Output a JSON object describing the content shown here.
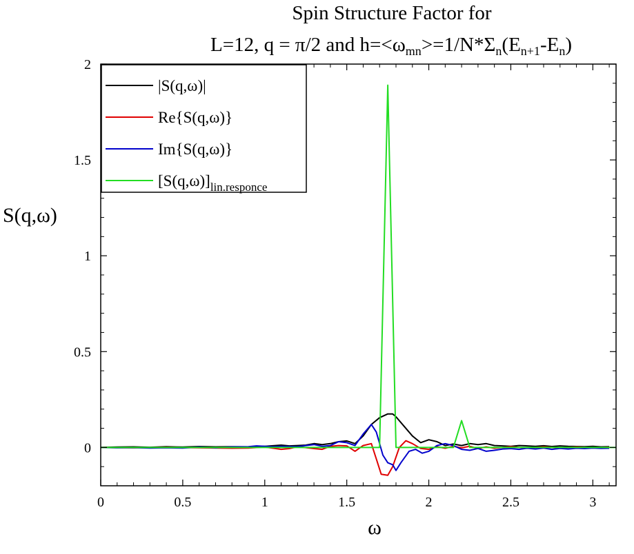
{
  "chart_data": {
    "type": "line",
    "title_line1": "Spin Structure Factor for",
    "title_line2": {
      "prefix": "L=12, q = π/2 and h=<ω",
      "sub1": "mn",
      "mid": ">=1/N*Σ",
      "sub2": "n",
      "mid2": "(E",
      "sub3": "n+1",
      "mid3": "-E",
      "sub4": "n",
      "suffix": ")"
    },
    "xlabel": "ω",
    "ylabel": "S(q,ω)",
    "xlim": [
      0,
      3.14159
    ],
    "ylim": [
      -0.2,
      2
    ],
    "xticks": [
      0,
      0.5,
      1,
      1.5,
      2,
      2.5,
      3
    ],
    "xtick_labels": [
      "0",
      "0.5",
      "1",
      "1.5",
      "2",
      "2.5",
      "3"
    ],
    "yticks": [
      0,
      0.5,
      1,
      1.5,
      2
    ],
    "ytick_labels": [
      "0",
      "0.5",
      "1",
      "1.5",
      "2"
    ],
    "legend_position": "top-left",
    "series": [
      {
        "name": "|S(q,ω)|",
        "legend": {
          "main": "|S(q,ω)|",
          "sub": ""
        },
        "color": "#000000",
        "points": [
          [
            0,
            0
          ],
          [
            0.1,
            0.002
          ],
          [
            0.2,
            0.003
          ],
          [
            0.3,
            0.001
          ],
          [
            0.4,
            0.004
          ],
          [
            0.5,
            0.002
          ],
          [
            0.6,
            0.005
          ],
          [
            0.7,
            0.003
          ],
          [
            0.8,
            0.004
          ],
          [
            0.9,
            0.003
          ],
          [
            1.0,
            0.006
          ],
          [
            1.05,
            0.009
          ],
          [
            1.1,
            0.012
          ],
          [
            1.15,
            0.008
          ],
          [
            1.2,
            0.01
          ],
          [
            1.25,
            0.012
          ],
          [
            1.3,
            0.02
          ],
          [
            1.35,
            0.015
          ],
          [
            1.4,
            0.02
          ],
          [
            1.45,
            0.03
          ],
          [
            1.5,
            0.034
          ],
          [
            1.55,
            0.02
          ],
          [
            1.6,
            0.06
          ],
          [
            1.65,
            0.12
          ],
          [
            1.7,
            0.155
          ],
          [
            1.75,
            0.175
          ],
          [
            1.78,
            0.175
          ],
          [
            1.8,
            0.16
          ],
          [
            1.85,
            0.11
          ],
          [
            1.9,
            0.06
          ],
          [
            1.95,
            0.025
          ],
          [
            2.0,
            0.04
          ],
          [
            2.05,
            0.03
          ],
          [
            2.1,
            0.01
          ],
          [
            2.15,
            0.018
          ],
          [
            2.2,
            0.01
          ],
          [
            2.25,
            0.02
          ],
          [
            2.3,
            0.015
          ],
          [
            2.35,
            0.02
          ],
          [
            2.4,
            0.01
          ],
          [
            2.45,
            0.008
          ],
          [
            2.5,
            0.006
          ],
          [
            2.55,
            0.01
          ],
          [
            2.6,
            0.008
          ],
          [
            2.65,
            0.006
          ],
          [
            2.7,
            0.009
          ],
          [
            2.75,
            0.005
          ],
          [
            2.8,
            0.008
          ],
          [
            2.85,
            0.006
          ],
          [
            2.9,
            0.005
          ],
          [
            2.95,
            0.004
          ],
          [
            3.0,
            0.006
          ],
          [
            3.05,
            0.003
          ],
          [
            3.1,
            0.004
          ]
        ]
      },
      {
        "name": "Re{S(q,ω)}",
        "legend": {
          "main": "Re{S(q,ω)}",
          "sub": ""
        },
        "color": "#e00000",
        "points": [
          [
            0,
            0
          ],
          [
            0.2,
            -0.002
          ],
          [
            0.4,
            0.001
          ],
          [
            0.6,
            -0.002
          ],
          [
            0.8,
            -0.004
          ],
          [
            0.9,
            -0.003
          ],
          [
            1.0,
            0.002
          ],
          [
            1.1,
            -0.01
          ],
          [
            1.15,
            -0.006
          ],
          [
            1.2,
            0.004
          ],
          [
            1.3,
            -0.006
          ],
          [
            1.35,
            -0.01
          ],
          [
            1.4,
            0.006
          ],
          [
            1.45,
            0.01
          ],
          [
            1.5,
            0.008
          ],
          [
            1.55,
            -0.02
          ],
          [
            1.6,
            0.01
          ],
          [
            1.65,
            0.02
          ],
          [
            1.68,
            -0.06
          ],
          [
            1.71,
            -0.14
          ],
          [
            1.75,
            -0.145
          ],
          [
            1.78,
            -0.1
          ],
          [
            1.82,
            0.0
          ],
          [
            1.86,
            0.035
          ],
          [
            1.9,
            0.02
          ],
          [
            1.95,
            -0.005
          ],
          [
            2.0,
            -0.01
          ],
          [
            2.05,
            0.004
          ],
          [
            2.1,
            -0.004
          ],
          [
            2.15,
            0.006
          ],
          [
            2.2,
            -0.002
          ],
          [
            2.25,
            0.006
          ],
          [
            2.3,
            -0.006
          ],
          [
            2.35,
            0.003
          ],
          [
            2.4,
            -0.004
          ],
          [
            2.5,
            0.004
          ],
          [
            2.6,
            -0.004
          ],
          [
            2.7,
            0.003
          ],
          [
            2.8,
            -0.003
          ],
          [
            2.9,
            0.002
          ],
          [
            3.0,
            -0.002
          ],
          [
            3.1,
            0.001
          ]
        ]
      },
      {
        "name": "Im{S(q,ω)}",
        "legend": {
          "main": "Im{S(q,ω)}",
          "sub": ""
        },
        "color": "#0000cc",
        "points": [
          [
            0,
            0
          ],
          [
            0.1,
            -0.002
          ],
          [
            0.2,
            -0.001
          ],
          [
            0.3,
            -0.003
          ],
          [
            0.4,
            -0.002
          ],
          [
            0.5,
            -0.003
          ],
          [
            0.6,
            0.002
          ],
          [
            0.7,
            -0.002
          ],
          [
            0.8,
            0.003
          ],
          [
            0.9,
            0.004
          ],
          [
            0.95,
            0.008
          ],
          [
            1.0,
            0.006
          ],
          [
            1.05,
            0.004
          ],
          [
            1.1,
            0.006
          ],
          [
            1.2,
            0.004
          ],
          [
            1.25,
            0.01
          ],
          [
            1.3,
            0.015
          ],
          [
            1.35,
            0.006
          ],
          [
            1.4,
            0.01
          ],
          [
            1.45,
            0.03
          ],
          [
            1.5,
            0.025
          ],
          [
            1.55,
            0.01
          ],
          [
            1.6,
            0.07
          ],
          [
            1.65,
            0.12
          ],
          [
            1.68,
            0.08
          ],
          [
            1.72,
            -0.04
          ],
          [
            1.75,
            -0.08
          ],
          [
            1.78,
            -0.09
          ],
          [
            1.8,
            -0.12
          ],
          [
            1.83,
            -0.08
          ],
          [
            1.88,
            -0.02
          ],
          [
            1.92,
            -0.01
          ],
          [
            1.96,
            -0.03
          ],
          [
            2.0,
            -0.02
          ],
          [
            2.05,
            0.01
          ],
          [
            2.1,
            0.02
          ],
          [
            2.15,
            0.01
          ],
          [
            2.2,
            -0.01
          ],
          [
            2.25,
            -0.015
          ],
          [
            2.3,
            -0.005
          ],
          [
            2.35,
            -0.02
          ],
          [
            2.4,
            -0.015
          ],
          [
            2.45,
            -0.008
          ],
          [
            2.5,
            -0.006
          ],
          [
            2.55,
            -0.01
          ],
          [
            2.6,
            -0.004
          ],
          [
            2.65,
            -0.008
          ],
          [
            2.7,
            -0.003
          ],
          [
            2.75,
            -0.01
          ],
          [
            2.8,
            -0.005
          ],
          [
            2.85,
            -0.008
          ],
          [
            2.9,
            -0.004
          ],
          [
            2.95,
            -0.006
          ],
          [
            3.0,
            -0.003
          ],
          [
            3.05,
            -0.005
          ],
          [
            3.1,
            -0.004
          ]
        ]
      },
      {
        "name": "[S(q,ω)]lin.responce",
        "legend": {
          "main": "[S(q,ω)]",
          "sub": "lin.responce"
        },
        "color": "#22dd22",
        "points": [
          [
            0,
            0
          ],
          [
            1.69,
            0
          ],
          [
            1.7,
            0
          ],
          [
            1.75,
            1.89
          ],
          [
            1.8,
            0
          ],
          [
            1.85,
            0
          ],
          [
            2.15,
            0
          ],
          [
            2.2,
            0.14
          ],
          [
            2.25,
            0
          ],
          [
            3.14,
            0
          ]
        ]
      }
    ]
  }
}
